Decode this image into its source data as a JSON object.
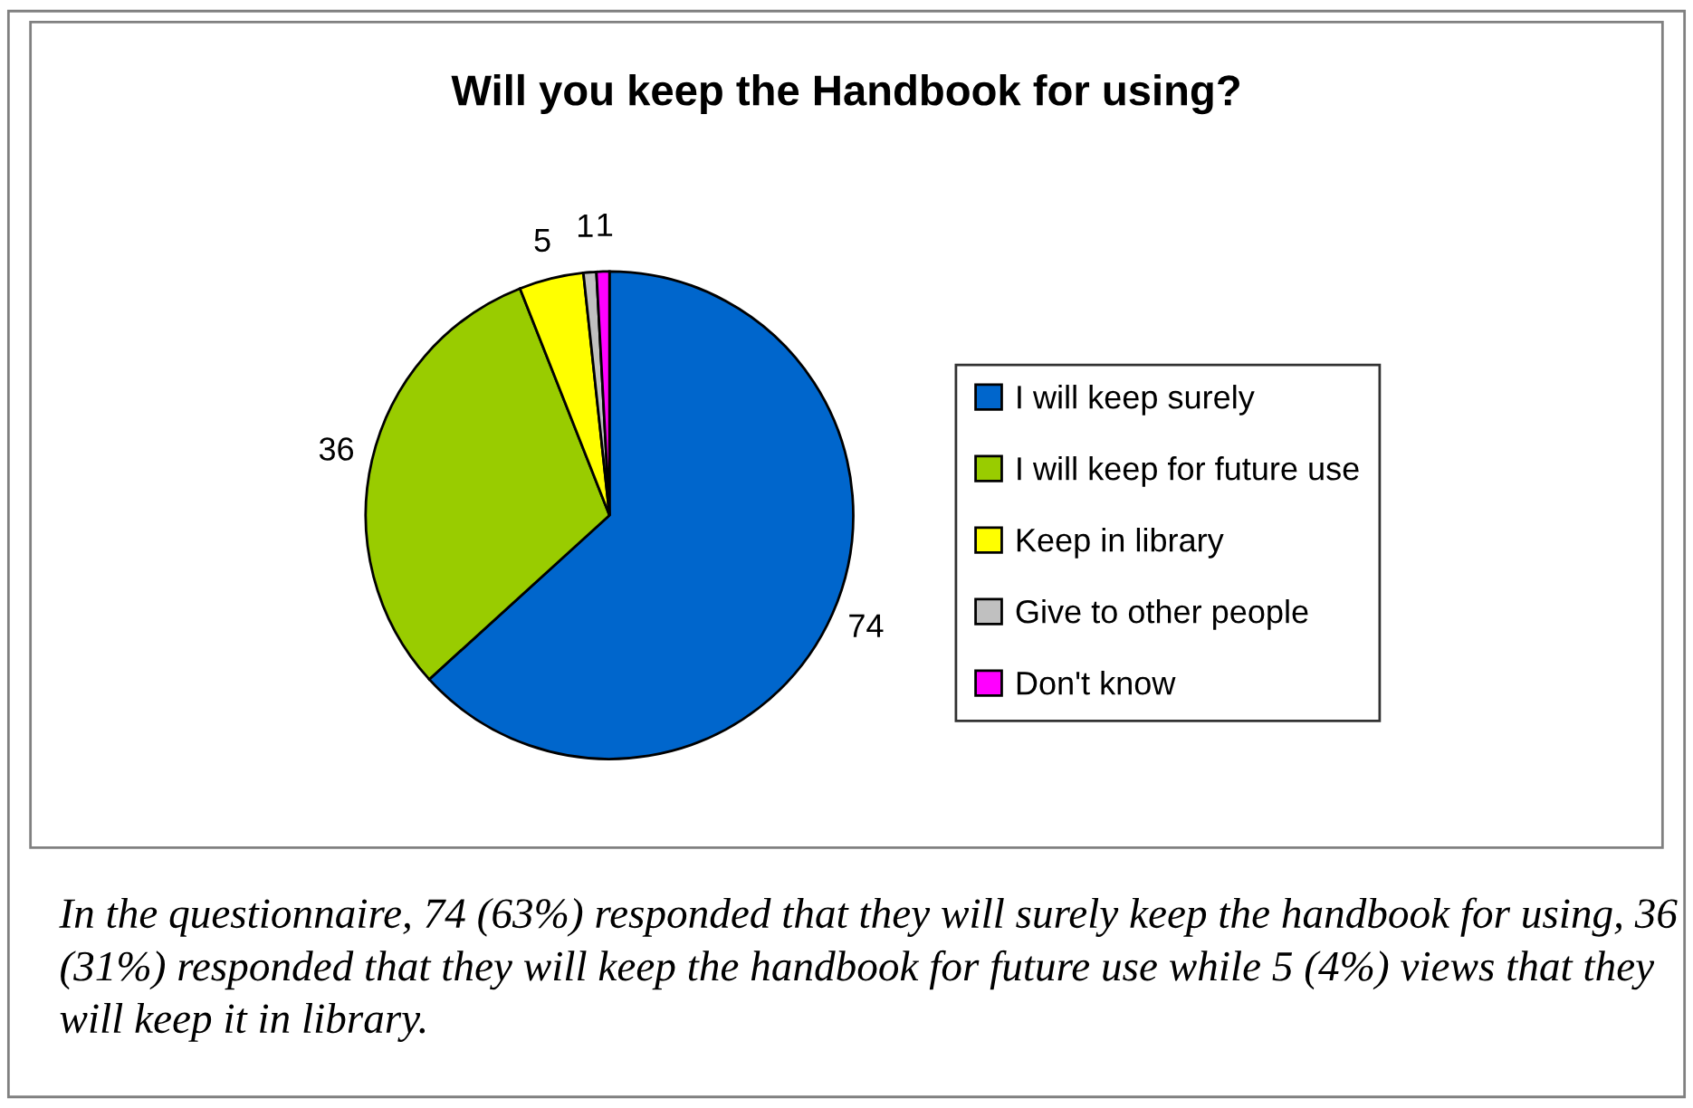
{
  "chart_data": {
    "type": "pie",
    "title": "Will you keep the Handbook for using?",
    "categories": [
      "I will keep surely",
      "I will keep for future use",
      "Keep in library",
      "Give to other people",
      "Don't know"
    ],
    "values": [
      74,
      36,
      5,
      1,
      1
    ],
    "colors": [
      "#0066cc",
      "#99cc00",
      "#ffff00",
      "#c0c0c0",
      "#ff00ff"
    ],
    "data_labels": true,
    "legend": "right",
    "annotations": [
      "In the questionnaire, 74 (63%) responded that they will surely keep the handbook for using, 36 (31%) responded that they will keep the handbook for future use while 5 (4%) views that they will keep it in library."
    ]
  }
}
